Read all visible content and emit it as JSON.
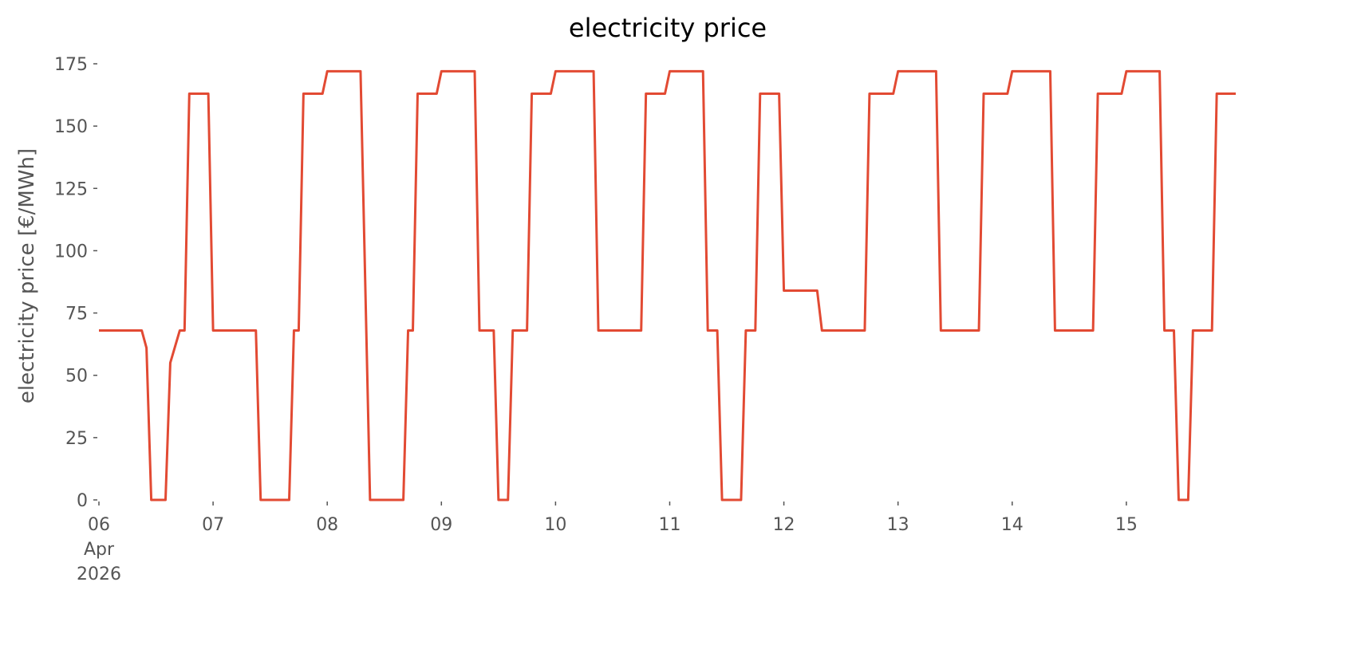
{
  "chart_data": {
    "type": "line",
    "title": "electricity price",
    "y_label": "electricity price [€/MWh]",
    "color": "#E24A33",
    "x": [
      0,
      9,
      10,
      11,
      14,
      15,
      17,
      18,
      19,
      23,
      24,
      33,
      34,
      40,
      41,
      42,
      43,
      47,
      48,
      55,
      57,
      64,
      65,
      66,
      67,
      71,
      72,
      79,
      80,
      83,
      84,
      86,
      87,
      90,
      91,
      95,
      96,
      104,
      105,
      114,
      115,
      119,
      120,
      127,
      128,
      130,
      131,
      135,
      136,
      138,
      139,
      143,
      144,
      151,
      152,
      161,
      162,
      167,
      168,
      176,
      177,
      185,
      186,
      191,
      192,
      200,
      201,
      209,
      210,
      215,
      216,
      223,
      224,
      226,
      227,
      229,
      230,
      234,
      235,
      239
    ],
    "values": [
      68,
      68,
      61,
      0,
      0,
      55,
      68,
      68,
      163,
      163,
      68,
      68,
      0,
      0,
      68,
      68,
      163,
      163,
      172,
      172,
      0,
      0,
      68,
      68,
      163,
      163,
      172,
      172,
      68,
      68,
      0,
      0,
      68,
      68,
      163,
      163,
      172,
      172,
      68,
      68,
      163,
      163,
      172,
      172,
      68,
      68,
      0,
      0,
      68,
      68,
      163,
      163,
      84,
      84,
      68,
      68,
      163,
      163,
      172,
      172,
      68,
      68,
      163,
      163,
      172,
      172,
      68,
      68,
      163,
      163,
      172,
      172,
      68,
      68,
      0,
      0,
      68,
      68,
      163,
      163
    ],
    "xlim": [
      0,
      239
    ],
    "xticks": [
      {
        "value": 0,
        "label": "06\nApr\n2026"
      },
      {
        "value": 24,
        "label": "07"
      },
      {
        "value": 48,
        "label": "08"
      },
      {
        "value": 72,
        "label": "09"
      },
      {
        "value": 96,
        "label": "10"
      },
      {
        "value": 120,
        "label": "11"
      },
      {
        "value": 144,
        "label": "12"
      },
      {
        "value": 168,
        "label": "13"
      },
      {
        "value": 192,
        "label": "14"
      },
      {
        "value": 216,
        "label": "15"
      }
    ],
    "ylim": [
      0,
      175
    ],
    "yticks": [
      0,
      25,
      50,
      75,
      100,
      125,
      150,
      175
    ],
    "grid": false
  }
}
